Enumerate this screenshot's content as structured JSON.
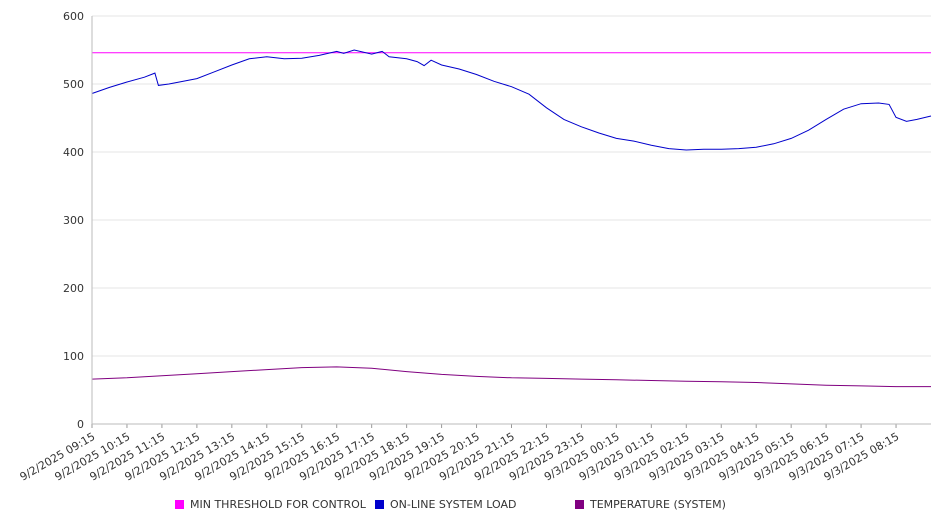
{
  "chart_data": {
    "type": "line",
    "title": "",
    "xlabel": "",
    "ylabel": "",
    "ylim": [
      0,
      600
    ],
    "yticks": [
      0,
      100,
      200,
      300,
      400,
      500,
      600
    ],
    "grid": true,
    "legend_position": "bottom",
    "x_tick_labels": [
      "9/2/2025 09:15",
      "9/2/2025 10:15",
      "9/2/2025 11:15",
      "9/2/2025 12:15",
      "9/2/2025 13:15",
      "9/2/2025 14:15",
      "9/2/2025 15:15",
      "9/2/2025 16:15",
      "9/2/2025 17:15",
      "9/2/2025 18:15",
      "9/2/2025 19:15",
      "9/2/2025 20:15",
      "9/2/2025 21:15",
      "9/2/2025 22:15",
      "9/2/2025 23:15",
      "9/3/2025 00:15",
      "9/3/2025 01:15",
      "9/3/2025 02:15",
      "9/3/2025 03:15",
      "9/3/2025 04:15",
      "9/3/2025 05:15",
      "9/3/2025 06:15",
      "9/3/2025 07:15",
      "9/3/2025 08:15"
    ],
    "x_range_hours": [
      0,
      24
    ],
    "series": [
      {
        "name": "MIN THRESHOLD FOR CONTROL",
        "color": "#ff00ff",
        "x": [
          0,
          24
        ],
        "y": [
          546,
          546
        ]
      },
      {
        "name": "ON-LINE SYSTEM LOAD",
        "color": "#0000cc",
        "x": [
          0,
          0.5,
          1,
          1.5,
          1.8,
          1.9,
          2.2,
          2.5,
          3,
          3.5,
          4,
          4.5,
          5,
          5.5,
          6,
          6.5,
          7,
          7.2,
          7.5,
          8,
          8.3,
          8.5,
          9,
          9.3,
          9.5,
          9.7,
          10,
          10.5,
          11,
          11.5,
          12,
          12.5,
          13,
          13.5,
          14,
          14.5,
          15,
          15.5,
          16,
          16.5,
          17,
          17.5,
          18,
          18.5,
          19,
          19.5,
          20,
          20.5,
          21,
          21.5,
          22,
          22.5,
          22.8,
          23,
          23.3,
          23.6,
          24
        ],
        "y": [
          486,
          495,
          503,
          510,
          516,
          498,
          500,
          503,
          508,
          518,
          528,
          537,
          540,
          537,
          538,
          542,
          548,
          545,
          550,
          544,
          548,
          540,
          537,
          533,
          527,
          535,
          528,
          522,
          514,
          504,
          496,
          485,
          465,
          448,
          437,
          428,
          420,
          416,
          410,
          405,
          403,
          404,
          404,
          405,
          407,
          412,
          420,
          432,
          448,
          463,
          471,
          472,
          470,
          451,
          445,
          448,
          453
        ]
      },
      {
        "name": "TEMPERATURE (SYSTEM)",
        "color": "#800080",
        "x": [
          0,
          1,
          2,
          3,
          4,
          5,
          6,
          7,
          8,
          9,
          10,
          11,
          12,
          13,
          14,
          15,
          16,
          17,
          18,
          19,
          20,
          21,
          22,
          23,
          24
        ],
        "y": [
          66,
          68,
          71,
          74,
          77,
          80,
          83,
          84,
          82,
          77,
          73,
          70,
          68,
          67,
          66,
          65,
          64,
          63,
          62,
          61,
          59,
          57,
          56,
          55,
          55
        ]
      }
    ]
  }
}
